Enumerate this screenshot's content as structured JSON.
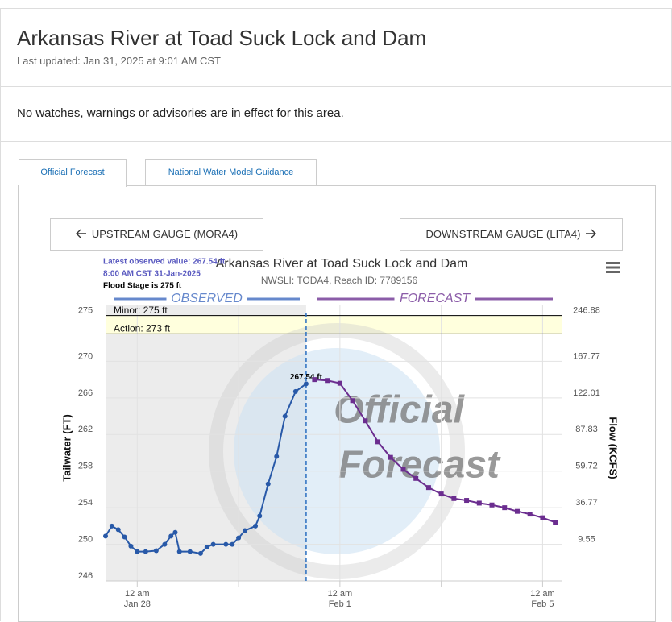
{
  "header": {
    "title": "Arkansas River at Toad Suck Lock and Dam",
    "updated": "Last updated: Jan 31, 2025 at 9:01 AM CST"
  },
  "alert": "No watches, warnings or advisories are in effect for this area.",
  "tabs": [
    "Official Forecast",
    "National Water Model Guidance"
  ],
  "buttons": {
    "upstream": "UPSTREAM GAUGE (MORA4)",
    "downstream": "DOWNSTREAM GAUGE (LITA4)"
  },
  "chart_data": {
    "type": "line",
    "title": "Arkansas River at Toad Suck Lock and Dam",
    "subtitle": "NWSLI: TODA4, Reach ID: 7789156",
    "annotations": [
      "Latest observed value: 267.54 ft",
      "8:00 AM CST 31-Jan-2025",
      "Flood Stage is 275 ft"
    ],
    "watermark": [
      "Official",
      "Forecast"
    ],
    "ylabel": "Tailwater (FT)",
    "y2label": "Flow (KCFS)",
    "xlim": [
      "Jan 27 09:00",
      "Feb 5 09:00"
    ],
    "xticks": [
      {
        "value": "Jan 28 00:00",
        "label": "12 am",
        "sublabel": "Jan 28"
      },
      "Jan 30 00:00",
      {
        "value": "Feb 1 00:00",
        "label": "12 am",
        "sublabel": "Feb 1"
      },
      "Feb 3 00:00",
      {
        "value": "Feb 5 00:00",
        "label": "12 am",
        "sublabel": "Feb 5"
      }
    ],
    "ylim": [
      246,
      276.2
    ],
    "yticks": [
      246,
      250,
      254,
      258,
      262,
      266,
      270,
      275
    ],
    "y2ticks": [
      9.55,
      36.77,
      59.72,
      87.83,
      122.01,
      167.77,
      246.88
    ],
    "thresholds": [
      {
        "label": "Minor: 275 ft",
        "value": 275,
        "color": "#000000"
      },
      {
        "label": "Action: 273 ft",
        "value": 273,
        "color": "#000000"
      }
    ],
    "grid": true,
    "series": [
      {
        "name": "OBSERVED",
        "color": "#2859a8",
        "marker": "circle",
        "x": [
          "Jan 27 09:00",
          "Jan 27 12:00",
          "Jan 27 15:00",
          "Jan 27 18:00",
          "Jan 27 21:00",
          "Jan 28 00:00",
          "Jan 28 04:00",
          "Jan 28 09:00",
          "Jan 28 13:00",
          "Jan 28 16:00",
          "Jan 28 18:00",
          "Jan 28 20:00",
          "Jan 29 01:00",
          "Jan 29 06:00",
          "Jan 29 09:00",
          "Jan 29 12:00",
          "Jan 29 18:00",
          "Jan 29 21:00",
          "Jan 30 00:00",
          "Jan 30 03:00",
          "Jan 30 08:00",
          "Jan 30 10:00",
          "Jan 30 14:00",
          "Jan 30 18:00",
          "Jan 30 22:00",
          "Jan 31 03:00",
          "Jan 31 08:00"
        ],
        "values": [
          250.9,
          252.0,
          251.6,
          250.8,
          249.8,
          249.2,
          249.2,
          249.3,
          250.0,
          250.9,
          251.3,
          249.2,
          249.2,
          249.0,
          249.7,
          250.0,
          250.0,
          250.0,
          250.7,
          251.5,
          252.0,
          253.1,
          256.6,
          259.6,
          264.0,
          266.7,
          267.54
        ],
        "value_labels": [
          null,
          null,
          null,
          null,
          null,
          null,
          null,
          null,
          null,
          null,
          null,
          null,
          null,
          null,
          null,
          null,
          null,
          null,
          null,
          null,
          null,
          null,
          null,
          null,
          null,
          null,
          "267.54 ft"
        ]
      },
      {
        "name": "FORECAST",
        "color": "#6b2d8f",
        "marker": "square",
        "x": [
          "Jan 31 12:00",
          "Jan 31 18:00",
          "Feb 1 00:00",
          "Feb 1 06:00",
          "Feb 1 12:00",
          "Feb 1 18:00",
          "Feb 2 00:00",
          "Feb 2 06:00",
          "Feb 2 12:00",
          "Feb 2 18:00",
          "Feb 3 00:00",
          "Feb 3 06:00",
          "Feb 3 12:00",
          "Feb 3 18:00",
          "Feb 4 00:00",
          "Feb 4 06:00",
          "Feb 4 12:00",
          "Feb 4 18:00",
          "Feb 5 00:00",
          "Feb 5 06:00"
        ],
        "values": [
          268.0,
          267.9,
          267.6,
          265.7,
          263.5,
          261.2,
          259.5,
          258.2,
          257.2,
          256.2,
          255.5,
          255.0,
          254.8,
          254.5,
          254.3,
          254.0,
          253.6,
          253.3,
          252.9,
          252.4
        ]
      }
    ]
  }
}
